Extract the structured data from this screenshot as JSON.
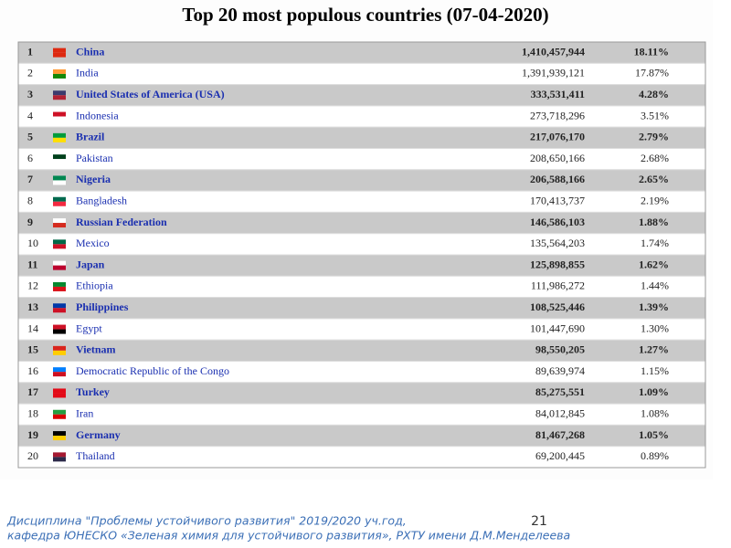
{
  "header": {
    "title": "Top 20 most populous countries (07-04-2020)"
  },
  "table": {
    "rows": [
      [
        1,
        "China",
        "1,410,457,944",
        "18.11%"
      ],
      [
        2,
        "India",
        "1,391,939,121",
        "17.87%"
      ],
      [
        3,
        "United States of America (USA)",
        "333,531,411",
        "4.28%"
      ],
      [
        4,
        "Indonesia",
        "273,718,296",
        "3.51%"
      ],
      [
        5,
        "Brazil",
        "217,076,170",
        "2.79%"
      ],
      [
        6,
        "Pakistan",
        "208,650,166",
        "2.68%"
      ],
      [
        7,
        "Nigeria",
        "206,588,166",
        "2.65%"
      ],
      [
        8,
        "Bangladesh",
        "170,413,737",
        "2.19%"
      ],
      [
        9,
        "Russian Federation",
        "146,586,103",
        "1.88%"
      ],
      [
        10,
        "Mexico",
        "135,564,203",
        "1.74%"
      ],
      [
        11,
        "Japan",
        "125,898,855",
        "1.62%"
      ],
      [
        12,
        "Ethiopia",
        "111,986,272",
        "1.44%"
      ],
      [
        13,
        "Philippines",
        "108,525,446",
        "1.39%"
      ],
      [
        14,
        "Egypt",
        "101,447,690",
        "1.30%"
      ],
      [
        15,
        "Vietnam",
        "98,550,205",
        "1.27%"
      ],
      [
        16,
        "Democratic Republic of the Congo",
        "89,639,974",
        "1.15%"
      ],
      [
        17,
        "Turkey",
        "85,275,551",
        "1.09%"
      ],
      [
        18,
        "Iran",
        "84,012,845",
        "1.08%"
      ],
      [
        19,
        "Germany",
        "81,467,268",
        "1.05%"
      ],
      [
        20,
        "Thailand",
        "69,200,445",
        "0.89%"
      ]
    ]
  },
  "footer": {
    "line1": "Дисциплина \"Проблемы устойчивого развития\" 2019/2020 уч.год,",
    "line2": "кафедра ЮНЕСКО «Зеленая химия для устойчивого развития», РХТУ имени Д.М.Менделеева",
    "page": 21
  }
}
